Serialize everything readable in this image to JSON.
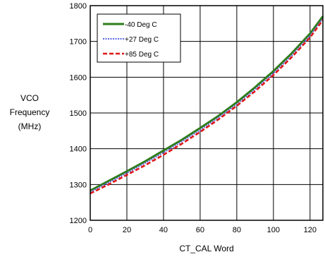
{
  "chart_data": {
    "type": "line",
    "title": "",
    "xlabel": "CT_CAL Word",
    "ylabel_lines": [
      "VCO",
      "Frequency",
      "(MHz)"
    ],
    "xlim": [
      0,
      127
    ],
    "ylim": [
      1200,
      1800
    ],
    "xticks": [
      0,
      20,
      40,
      60,
      80,
      100,
      120
    ],
    "yticks": [
      1200,
      1300,
      1400,
      1500,
      1600,
      1700,
      1800
    ],
    "grid": true,
    "legend_position": "top-left",
    "x": [
      0,
      10,
      20,
      30,
      40,
      50,
      60,
      70,
      80,
      90,
      100,
      110,
      120,
      127
    ],
    "series": [
      {
        "name": "-40 Deg C",
        "color": "#2e7d1a",
        "style": "solid",
        "values": [
          1283,
          1310,
          1337,
          1365,
          1395,
          1425,
          1458,
          1492,
          1530,
          1572,
          1617,
          1667,
          1722,
          1770
        ]
      },
      {
        "name": "+27 Deg C",
        "color": "#5a64e0",
        "style": "dotted",
        "values": [
          1279,
          1305,
          1332,
          1360,
          1389,
          1420,
          1452,
          1487,
          1524,
          1566,
          1611,
          1660,
          1716,
          1764
        ]
      },
      {
        "name": "+85 Deg C",
        "color": "#e01818",
        "style": "dashed",
        "values": [
          1275,
          1300,
          1327,
          1354,
          1383,
          1414,
          1447,
          1482,
          1520,
          1561,
          1606,
          1656,
          1711,
          1760
        ]
      }
    ]
  }
}
